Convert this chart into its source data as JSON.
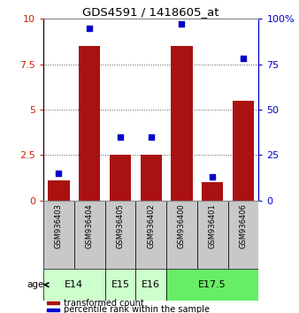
{
  "title": "GDS4591 / 1418605_at",
  "samples": [
    "GSM936403",
    "GSM936404",
    "GSM936405",
    "GSM936402",
    "GSM936400",
    "GSM936401",
    "GSM936406"
  ],
  "transformed_counts": [
    1.1,
    8.5,
    2.5,
    2.5,
    8.5,
    1.0,
    5.5
  ],
  "percentile_ranks": [
    15,
    95,
    35,
    35,
    97,
    13,
    78
  ],
  "bar_color": "#aa1111",
  "dot_color": "#0000cc",
  "ylim_left": [
    0,
    10
  ],
  "ylim_right": [
    0,
    100
  ],
  "yticks_left": [
    0,
    2.5,
    5,
    7.5,
    10
  ],
  "yticks_right": [
    0,
    25,
    50,
    75,
    100
  ],
  "ytick_labels_left": [
    "0",
    "2.5",
    "5",
    "7.5",
    "10"
  ],
  "ytick_labels_right": [
    "0",
    "25",
    "50",
    "75",
    "100%"
  ],
  "left_axis_color": "#cc2200",
  "right_axis_color": "#0000cc",
  "groups": [
    {
      "label": "E14",
      "indices": [
        0,
        1
      ],
      "color": "#ccffcc"
    },
    {
      "label": "E15",
      "indices": [
        2
      ],
      "color": "#ccffcc"
    },
    {
      "label": "E16",
      "indices": [
        3
      ],
      "color": "#ccffcc"
    },
    {
      "label": "E17.5",
      "indices": [
        4,
        5,
        6
      ],
      "color": "#66ee66"
    }
  ],
  "age_label": "age",
  "legend_items": [
    {
      "color": "#aa1111",
      "label": "transformed count"
    },
    {
      "color": "#0000cc",
      "label": "percentile rank within the sample"
    }
  ],
  "grid_color": "#555555",
  "background_color": "#ffffff",
  "sample_bg_color": "#c8c8c8"
}
